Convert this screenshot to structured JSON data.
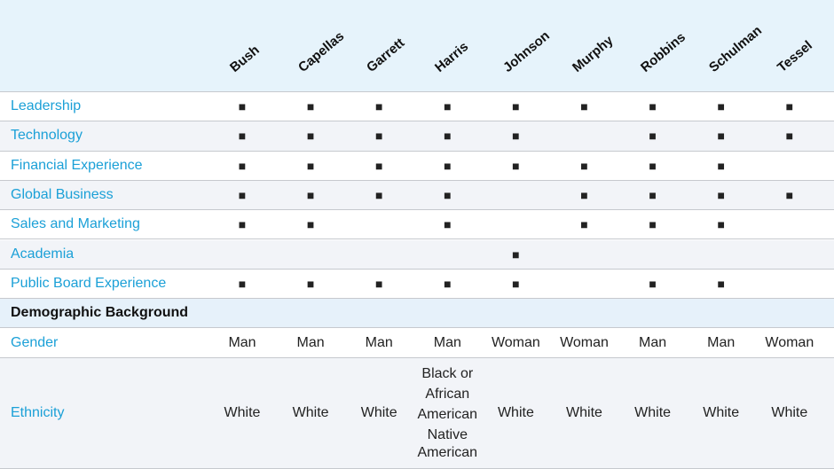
{
  "table": {
    "columns": [
      "Bush",
      "Capellas",
      "Garrett",
      "Harris",
      "Johnson",
      "Murphy",
      "Robbins",
      "Schulman",
      "Tessel"
    ],
    "rows": [
      {
        "label": "Leadership",
        "cells": [
          "■",
          "■",
          "■",
          "■",
          "■",
          "■",
          "■",
          "■",
          "■"
        ]
      },
      {
        "label": "Technology",
        "cells": [
          "■",
          "■",
          "■",
          "■",
          "■",
          null,
          "■",
          "■",
          "■"
        ]
      },
      {
        "label": "Financial Experience",
        "cells": [
          "■",
          "■",
          "■",
          "■",
          "■",
          "■",
          "■",
          "■",
          null
        ]
      },
      {
        "label": "Global Business",
        "cells": [
          "■",
          "■",
          "■",
          "■",
          null,
          "■",
          "■",
          "■",
          "■"
        ]
      },
      {
        "label": "Sales and Marketing",
        "cells": [
          "■",
          "■",
          null,
          "■",
          null,
          "■",
          "■",
          "■",
          null
        ]
      },
      {
        "label": "Academia",
        "cells": [
          null,
          null,
          null,
          null,
          "■",
          null,
          null,
          null,
          null
        ]
      },
      {
        "label": "Public Board Experience",
        "cells": [
          "■",
          "■",
          "■",
          "■",
          "■",
          null,
          "■",
          "■",
          null
        ]
      }
    ],
    "section_heading": "Demographic Background",
    "demographic_rows": [
      {
        "label": "Gender",
        "cells": [
          "Man",
          "Man",
          "Man",
          "Man",
          "Woman",
          "Woman",
          "Man",
          "Man",
          "Woman"
        ]
      },
      {
        "label": "Ethnicity",
        "cells": [
          "White",
          "White",
          "White",
          [
            "Black or African American",
            "Native American"
          ],
          "White",
          "White",
          "White",
          "White",
          "White"
        ]
      }
    ]
  }
}
